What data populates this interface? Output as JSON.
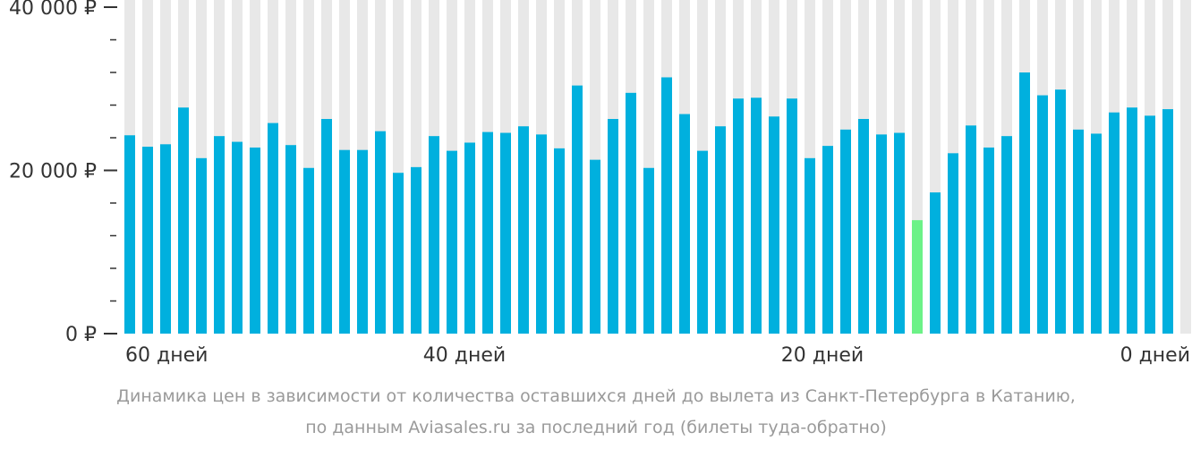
{
  "chart_data": {
    "type": "bar",
    "title": "",
    "y_unit": "₽",
    "ylim": [
      0,
      40000
    ],
    "y_ticks": [
      {
        "value": 40000,
        "label": "40 000 ₽"
      },
      {
        "value": 20000,
        "label": "20 000 ₽"
      },
      {
        "value": 0,
        "label": "0 ₽"
      }
    ],
    "x_ticks": [
      {
        "day": 60,
        "label": "60 дней"
      },
      {
        "day": 40,
        "label": "40 дней"
      },
      {
        "day": 20,
        "label": "20 дней"
      },
      {
        "day": 0,
        "label": "0 дней"
      }
    ],
    "days": [
      59,
      58,
      57,
      56,
      55,
      54,
      53,
      52,
      51,
      50,
      49,
      48,
      47,
      46,
      45,
      44,
      43,
      42,
      41,
      40,
      39,
      38,
      37,
      36,
      35,
      34,
      33,
      32,
      31,
      30,
      29,
      28,
      27,
      26,
      25,
      24,
      23,
      22,
      21,
      20,
      19,
      18,
      17,
      16,
      15,
      14,
      13,
      12,
      11,
      10,
      9,
      8,
      7,
      6,
      5,
      4,
      3,
      2,
      1,
      0
    ],
    "values": [
      24300,
      22900,
      23200,
      27700,
      21500,
      24200,
      23500,
      22800,
      25800,
      23100,
      20300,
      26300,
      22500,
      22500,
      24800,
      19700,
      20400,
      24200,
      22400,
      23400,
      24700,
      24600,
      25400,
      24400,
      22700,
      30400,
      21300,
      26300,
      29500,
      20300,
      31400,
      26900,
      22400,
      25400,
      28800,
      28900,
      26600,
      28800,
      21500,
      23000,
      25000,
      26300,
      24400,
      24600,
      13900,
      17300,
      22100,
      25500,
      22800,
      24200,
      32000,
      29200,
      29900,
      25000,
      24500,
      27100,
      27700,
      26700,
      27500,
      null
    ],
    "highlight_index": 44,
    "colors": {
      "bar": "#00b0de",
      "highlight": "#6cf287",
      "background_column": "#e8e8e8",
      "axis": "#333333"
    },
    "grid": false,
    "caption_line1": "Динамика цен в зависимости от количества оставшихся дней до вылета из Санкт-Петербурга в Катанию,",
    "caption_line2": "по данным Aviasales.ru за последний год (билеты туда-обратно)"
  }
}
